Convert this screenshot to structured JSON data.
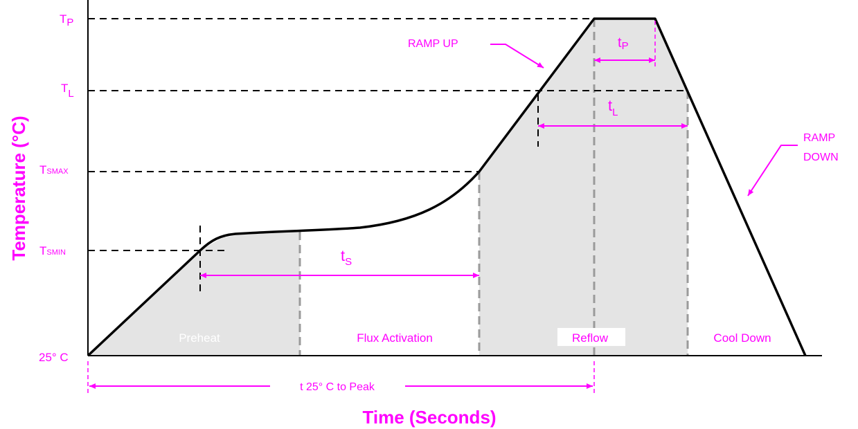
{
  "chart_data": {
    "type": "line",
    "xlabel": "Time (Seconds)",
    "ylabel": "Temperature (°C)",
    "y_levels": [
      {
        "key": "tp",
        "main": "T",
        "sub": "P"
      },
      {
        "key": "tl",
        "main": "T",
        "sub": "L"
      },
      {
        "key": "tsmax",
        "main": "T",
        "sub": "SMAX"
      },
      {
        "key": "tsmin",
        "main": "T",
        "sub": "SMIN"
      },
      {
        "key": "t25",
        "main": "25° C",
        "sub": ""
      }
    ],
    "regions": [
      {
        "name": "Preheat",
        "shaded": true
      },
      {
        "name": "Flux Activation",
        "shaded": false
      },
      {
        "name": "Reflow",
        "shaded": true
      },
      {
        "name": "Cool Down",
        "shaded": false
      }
    ],
    "annotations": {
      "ramp_up": "RAMP UP",
      "ramp_down_1": "RAMP",
      "ramp_down_2": "DOWN",
      "ts": {
        "main": "t",
        "sub": "S"
      },
      "tl": {
        "main": "t",
        "sub": "L"
      },
      "tp": {
        "main": "t",
        "sub": "P"
      },
      "t25_to_peak": "t 25° C to Peak"
    },
    "colors": {
      "annotation": "#ff00ff",
      "curve": "#000000",
      "shade": "#e4e4e4",
      "region_border": "#9a9a9a"
    }
  }
}
